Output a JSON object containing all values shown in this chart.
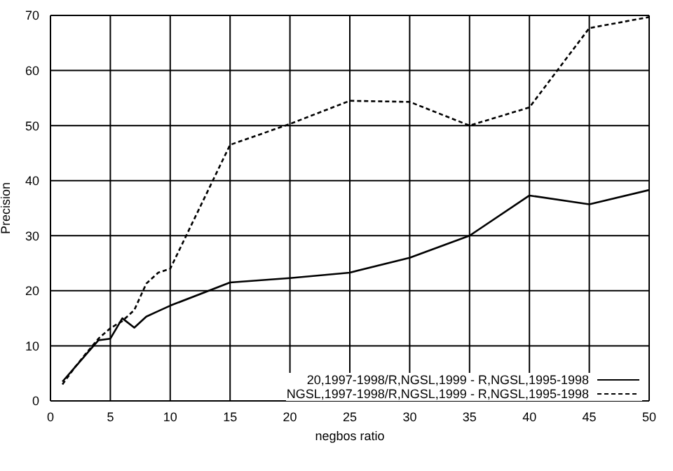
{
  "chart_data": {
    "type": "line",
    "xlabel": "negbos ratio",
    "ylabel": "Precision",
    "x": [
      1,
      2,
      3,
      4,
      5,
      6,
      7,
      8,
      9,
      10,
      15,
      20,
      25,
      30,
      35,
      40,
      45,
      50
    ],
    "series": [
      {
        "name": "20,1997-1998/R,NGSL,1999 - R,NGSL,1995-1998",
        "color": "#000000",
        "line_style": "solid",
        "values": [
          3.5,
          6,
          8.5,
          11,
          11.3,
          15,
          13.3,
          15.3,
          16.3,
          17.3,
          21.5,
          22.3,
          23.3,
          26,
          30,
          37.3,
          35.7,
          38.3
        ]
      },
      {
        "name": "NGSL,1997-1998/R,NGSL,1999 - R,NGSL,1995-1998",
        "color": "#000000",
        "line_style": "dashed",
        "values": [
          3,
          6,
          8.7,
          11.3,
          13.2,
          14.5,
          16.5,
          21.3,
          23.3,
          24,
          46.5,
          50.3,
          54.5,
          54.3,
          50,
          53.3,
          67.7,
          69.7
        ]
      }
    ],
    "xlim": [
      0,
      50
    ],
    "xticks": [
      0,
      5,
      10,
      15,
      20,
      25,
      30,
      35,
      40,
      45,
      50
    ],
    "ylim": [
      0,
      70
    ],
    "yticks": [
      0,
      10,
      20,
      30,
      40,
      50,
      60,
      70
    ],
    "grid": true,
    "legend": "bottom right",
    "marker": "none"
  }
}
